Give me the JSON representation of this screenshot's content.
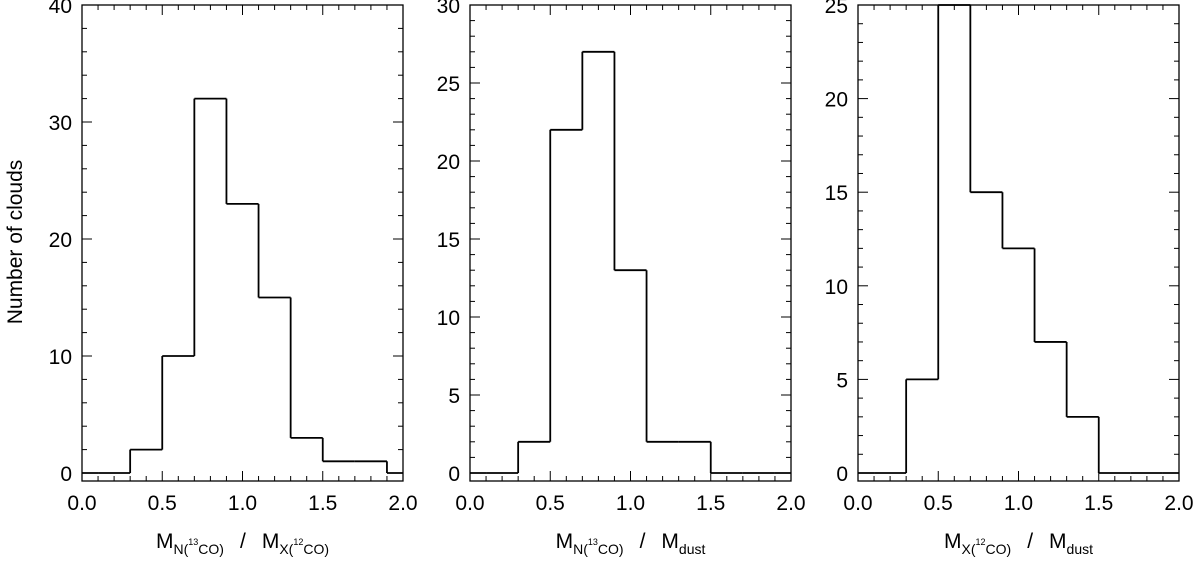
{
  "figure": {
    "ylabel": "Number of clouds"
  },
  "chart_data": [
    {
      "type": "histogram",
      "xlim": [
        0.0,
        2.0
      ],
      "ylim": [
        0,
        40
      ],
      "xticks": [
        "0.0",
        "0.5",
        "1.0",
        "1.5",
        "2.0"
      ],
      "yticks": [
        "0",
        "10",
        "20",
        "30",
        "40"
      ],
      "ytick_values": [
        0,
        10,
        20,
        30,
        40
      ],
      "xlabel": {
        "main": "M",
        "sub1": "N(",
        "sup1": "13",
        "sub1b": "CO)",
        "slash": "/",
        "main2": "M",
        "sub2": "X(",
        "sup2": "12",
        "sub2b": "CO)"
      },
      "bin_edges": [
        0.0,
        0.1,
        0.3,
        0.5,
        0.7,
        0.9,
        1.1,
        1.3,
        1.5,
        1.7,
        1.9,
        2.0
      ],
      "counts": [
        0,
        0,
        2,
        10,
        32,
        23,
        15,
        3,
        1,
        1,
        0
      ]
    },
    {
      "type": "histogram",
      "xlim": [
        0.0,
        2.0
      ],
      "ylim": [
        0,
        30
      ],
      "xticks": [
        "0.0",
        "0.5",
        "1.0",
        "1.5",
        "2.0"
      ],
      "yticks": [
        "0",
        "5",
        "10",
        "15",
        "20",
        "25",
        "30"
      ],
      "ytick_values": [
        0,
        5,
        10,
        15,
        20,
        25,
        30
      ],
      "xlabel": {
        "main": "M",
        "sub1": "N(",
        "sup1": "13",
        "sub1b": "CO)",
        "slash": "/",
        "main2": "M",
        "sub2": "dust"
      },
      "bin_edges": [
        0.0,
        0.1,
        0.3,
        0.5,
        0.7,
        0.9,
        1.1,
        1.3,
        1.5,
        1.7,
        1.9,
        2.0
      ],
      "counts": [
        0,
        0,
        2,
        22,
        27,
        13,
        2,
        2,
        0,
        0,
        0
      ]
    },
    {
      "type": "histogram",
      "xlim": [
        0.0,
        2.0
      ],
      "ylim": [
        0,
        25
      ],
      "xticks": [
        "0.0",
        "0.5",
        "1.0",
        "1.5",
        "2.0"
      ],
      "yticks": [
        "0",
        "5",
        "10",
        "15",
        "20",
        "25"
      ],
      "ytick_values": [
        0,
        5,
        10,
        15,
        20,
        25
      ],
      "xlabel": {
        "main": "M",
        "sub1": "X(",
        "sup1": "12",
        "sub1b": "CO)",
        "slash": "/",
        "main2": "M",
        "sub2": "dust"
      },
      "bin_edges": [
        0.0,
        0.1,
        0.3,
        0.5,
        0.7,
        0.9,
        1.1,
        1.3,
        1.5,
        1.7,
        1.9,
        2.0
      ],
      "counts": [
        0,
        0,
        5,
        25,
        15,
        12,
        7,
        3,
        0,
        0,
        0
      ]
    }
  ]
}
